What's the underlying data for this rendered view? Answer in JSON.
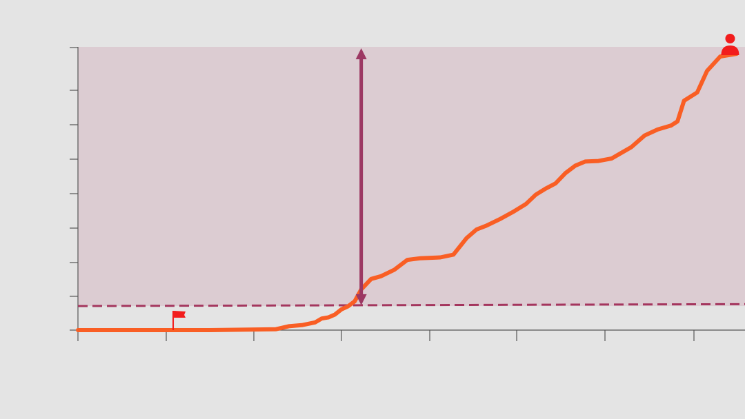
{
  "chart_data": {
    "type": "line",
    "title": "",
    "xlabel": "",
    "ylabel": "",
    "grid": false,
    "x_tick_count": 8,
    "y_tick_count": 9,
    "xlim": [
      0,
      100
    ],
    "ylim": [
      0,
      100
    ],
    "series": [
      {
        "color": "#f95e24",
        "points": [
          [
            0,
            0
          ],
          [
            10,
            0
          ],
          [
            20,
            0
          ],
          [
            30,
            0.3
          ],
          [
            32,
            1.4
          ],
          [
            34,
            1.8
          ],
          [
            36,
            2.8
          ],
          [
            37,
            4.2
          ],
          [
            38,
            4.6
          ],
          [
            39,
            5.6
          ],
          [
            40,
            7.5
          ],
          [
            41,
            8.6
          ],
          [
            42,
            10.4
          ],
          [
            43,
            14.7
          ],
          [
            44.5,
            18.5
          ],
          [
            46,
            19.5
          ],
          [
            48,
            21.8
          ],
          [
            50,
            25.4
          ],
          [
            52,
            26.0
          ],
          [
            55,
            26.3
          ],
          [
            57,
            27.3
          ],
          [
            59,
            33.3
          ],
          [
            60.5,
            36.4
          ],
          [
            62,
            37.8
          ],
          [
            64,
            40.1
          ],
          [
            66,
            42.7
          ],
          [
            68,
            45.6
          ],
          [
            69.5,
            49.0
          ],
          [
            71,
            51.2
          ],
          [
            72.5,
            53.1
          ],
          [
            74,
            56.8
          ],
          [
            75.5,
            59.5
          ],
          [
            77,
            61.0
          ],
          [
            79,
            61.2
          ],
          [
            81,
            62.1
          ],
          [
            84,
            66.2
          ],
          [
            86,
            70.4
          ],
          [
            88,
            72.6
          ],
          [
            90,
            74.0
          ],
          [
            91,
            75.5
          ],
          [
            92,
            83.0
          ],
          [
            94,
            86.0
          ],
          [
            95.5,
            93.8
          ],
          [
            97.5,
            99.0
          ],
          [
            100,
            100
          ]
        ]
      }
    ],
    "reference_line": {
      "from": [
        0,
        8.7
      ],
      "to": [
        100,
        9.4
      ],
      "color": "#a4365e",
      "style": "dashed"
    },
    "shaded_band": {
      "y_from": 8.7,
      "y_to": 100,
      "color": "#dcccd2"
    },
    "arrow": {
      "x": 43,
      "y_from": 9.0,
      "y_to": 100,
      "color": "#9c3863"
    },
    "markers": [
      {
        "icon": "flag-icon",
        "x": 15.5,
        "y": 0,
        "color": "#f21c1c"
      },
      {
        "icon": "person-icon",
        "x": 99,
        "y": 100,
        "color": "#f21c1c"
      }
    ],
    "axis_color": "#555555",
    "background": "#e4e4e4"
  }
}
